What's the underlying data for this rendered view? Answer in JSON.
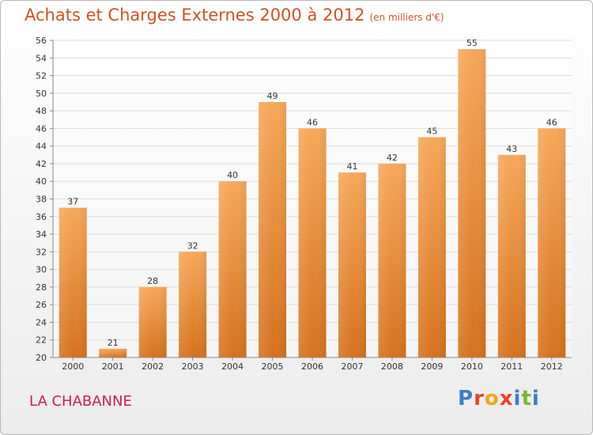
{
  "header": {
    "title": "Achats et Charges Externes 2000 à 2012",
    "subtitle": "(en milliers d'€)"
  },
  "footer": {
    "commune": "LA CHABANNE",
    "brand": "Proxiti"
  },
  "colors": {
    "title": "#c8532b",
    "commune": "#c8204d",
    "bar_top": "#f7a85a",
    "bar_bottom": "#d5721f"
  },
  "chart_data": {
    "type": "bar",
    "categories": [
      "2000",
      "2001",
      "2002",
      "2003",
      "2004",
      "2005",
      "2006",
      "2007",
      "2008",
      "2009",
      "2010",
      "2011",
      "2012"
    ],
    "values": [
      37,
      21,
      28,
      32,
      40,
      49,
      46,
      41,
      42,
      45,
      55,
      43,
      46
    ],
    "ylim": [
      20,
      56
    ],
    "yticks": [
      20,
      22,
      24,
      26,
      28,
      30,
      32,
      34,
      36,
      38,
      40,
      42,
      44,
      46,
      48,
      50,
      52,
      54,
      56
    ],
    "grid": true,
    "legend": "none"
  }
}
